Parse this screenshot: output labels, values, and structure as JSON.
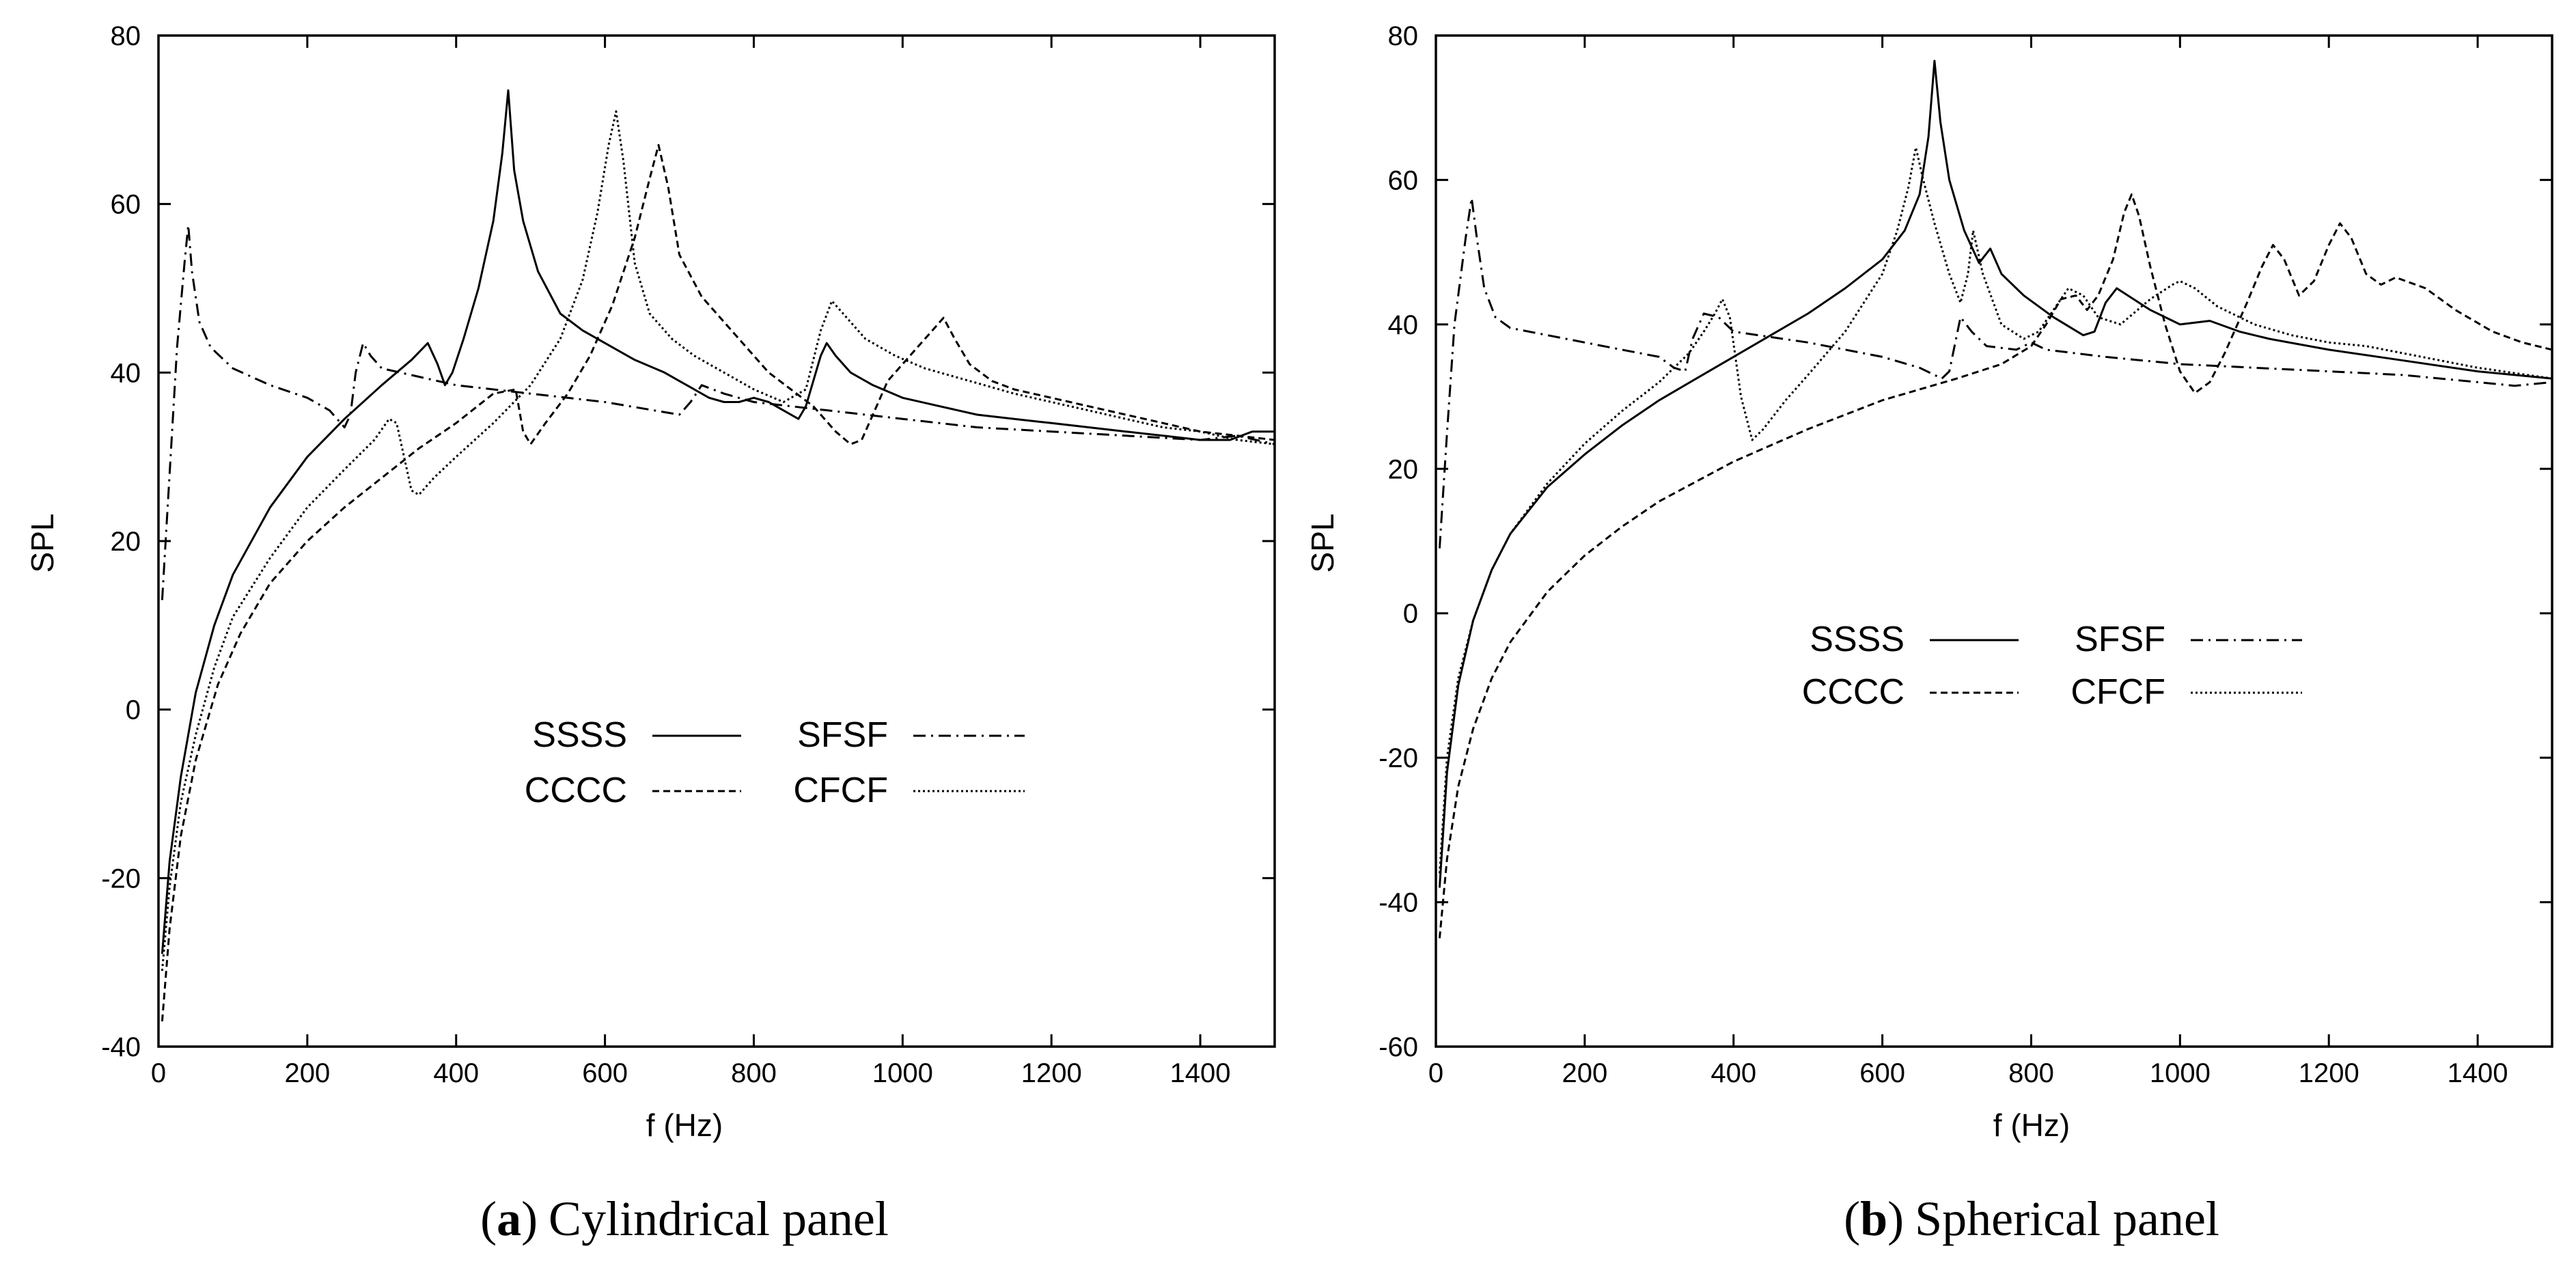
{
  "chart_data": [
    {
      "type": "line",
      "caption_letter": "a",
      "caption_text": "Cylindrical panel",
      "caption_open": "(",
      "caption_close": ")",
      "xlabel": "f (Hz)",
      "ylabel": "SPL",
      "xlim": [
        0,
        1500
      ],
      "ylim": [
        -40,
        80
      ],
      "xticks": [
        0,
        200,
        400,
        600,
        800,
        1000,
        1200,
        1400
      ],
      "yticks": [
        -40,
        -20,
        0,
        20,
        40,
        60,
        80
      ],
      "legend_position": "center",
      "series": [
        {
          "name": "SSSS",
          "dash": "solid",
          "x": [
            5,
            15,
            30,
            50,
            75,
            100,
            150,
            200,
            250,
            300,
            340,
            362,
            375,
            385,
            395,
            410,
            430,
            450,
            462,
            470,
            478,
            490,
            510,
            540,
            570,
            600,
            640,
            680,
            700,
            720,
            740,
            760,
            780,
            800,
            820,
            840,
            860,
            870,
            880,
            890,
            898,
            910,
            930,
            960,
            1000,
            1050,
            1100,
            1150,
            1200,
            1250,
            1300,
            1350,
            1400,
            1440,
            1470,
            1500
          ],
          "y": [
            -29,
            -18,
            -8,
            2,
            10,
            16,
            24,
            30,
            34.5,
            38.5,
            41.5,
            43.5,
            41,
            38.5,
            40,
            44,
            50,
            58,
            66,
            73.5,
            64,
            58,
            52,
            47,
            45,
            43.5,
            41.5,
            40,
            39,
            38,
            37,
            36.5,
            36.5,
            37,
            36.5,
            35.5,
            34.5,
            36,
            39,
            42,
            43.5,
            42,
            40,
            38.5,
            37,
            36,
            35,
            34.5,
            34,
            33.5,
            33,
            32.5,
            32,
            32,
            33,
            33
          ]
        },
        {
          "name": "SFSF",
          "dash": "dash-dot",
          "x": [
            5,
            15,
            25,
            35,
            40,
            45,
            55,
            70,
            100,
            150,
            200,
            230,
            250,
            258,
            265,
            275,
            285,
            300,
            350,
            400,
            500,
            600,
            700,
            715,
            730,
            760,
            800,
            900,
            1000,
            1100,
            1200,
            1300,
            1400,
            1450,
            1500
          ],
          "y": [
            13,
            28,
            43,
            53,
            57.5,
            52,
            46,
            43,
            40.5,
            38.5,
            37,
            35.5,
            33.5,
            35,
            40,
            43.5,
            42,
            40.5,
            39.5,
            38.5,
            37.5,
            36.5,
            35,
            36.5,
            38.5,
            37.5,
            36.5,
            35.5,
            34.5,
            33.5,
            33,
            32.5,
            32,
            32.5,
            31.5
          ]
        },
        {
          "name": "CCCC",
          "dash": "dashed",
          "x": [
            5,
            15,
            30,
            50,
            80,
            110,
            150,
            200,
            250,
            300,
            350,
            400,
            450,
            480,
            490,
            500,
            520,
            550,
            580,
            610,
            640,
            660,
            672,
            685,
            700,
            730,
            760,
            790,
            820,
            850,
            880,
            910,
            930,
            945,
            960,
            980,
            1000,
            1020,
            1040,
            1055,
            1070,
            1090,
            1120,
            1150,
            1200,
            1250,
            1300,
            1350,
            1400,
            1450,
            1500
          ],
          "y": [
            -37,
            -26,
            -15,
            -6,
            3,
            9,
            15,
            20,
            24,
            27.5,
            31,
            34,
            37.5,
            38,
            33,
            31.5,
            34,
            37.5,
            42,
            48,
            56,
            63,
            67,
            62,
            54,
            49,
            46,
            43,
            40,
            38,
            36,
            33,
            31.5,
            32,
            35,
            39,
            41,
            43,
            45,
            46.5,
            44,
            41,
            39,
            38,
            37,
            36,
            35,
            34,
            33,
            32.5,
            32
          ]
        },
        {
          "name": "CFCF",
          "dash": "dotted",
          "x": [
            5,
            15,
            30,
            50,
            75,
            100,
            150,
            200,
            250,
            290,
            310,
            320,
            330,
            340,
            350,
            370,
            400,
            450,
            500,
            540,
            570,
            590,
            605,
            615,
            625,
            640,
            660,
            690,
            720,
            760,
            800,
            840,
            870,
            890,
            905,
            920,
            950,
            990,
            1030,
            1070,
            1110,
            1150,
            1200,
            1250,
            1300,
            1350,
            1400,
            1450,
            1500
          ],
          "y": [
            -31,
            -21,
            -11,
            -3,
            5,
            11,
            18,
            24,
            28.5,
            32,
            34.5,
            34,
            30,
            26,
            25.5,
            27.5,
            30,
            34,
            38.5,
            44,
            51,
            59,
            67,
            71,
            65,
            53,
            47,
            44,
            42,
            40,
            38,
            36.5,
            38,
            45,
            48.5,
            47,
            44,
            42,
            40.5,
            39.5,
            38.5,
            37.5,
            36.5,
            35.5,
            34.5,
            33.5,
            33,
            32,
            31.5
          ]
        }
      ]
    },
    {
      "type": "line",
      "caption_letter": "b",
      "caption_text": "Spherical panel",
      "caption_open": "(",
      "caption_close": ")",
      "xlabel": "f (Hz)",
      "ylabel": "SPL",
      "xlim": [
        0,
        1500
      ],
      "ylim": [
        -60,
        80
      ],
      "xticks": [
        0,
        200,
        400,
        600,
        800,
        1000,
        1200,
        1400
      ],
      "yticks": [
        -60,
        -40,
        -20,
        0,
        20,
        40,
        60,
        80
      ],
      "legend_position": "center",
      "series": [
        {
          "name": "SSSS",
          "dash": "solid",
          "x": [
            5,
            15,
            30,
            50,
            75,
            100,
            150,
            200,
            250,
            300,
            350,
            400,
            450,
            500,
            550,
            600,
            630,
            650,
            662,
            670,
            678,
            690,
            710,
            730,
            745,
            760,
            790,
            830,
            870,
            885,
            900,
            915,
            930,
            960,
            1000,
            1040,
            1080,
            1120,
            1200,
            1300,
            1400,
            1500
          ],
          "y": [
            -38,
            -22,
            -10,
            -1,
            6,
            11,
            17.5,
            22,
            26,
            29.5,
            32.5,
            35.5,
            38.5,
            41.5,
            45,
            49,
            53,
            58,
            66,
            76.5,
            68,
            60,
            53,
            48.5,
            50.5,
            47,
            44,
            41,
            38.5,
            39,
            43,
            45,
            44,
            42,
            40,
            40.5,
            39,
            38,
            36.5,
            35,
            33.5,
            32.5
          ]
        },
        {
          "name": "SFSF",
          "dash": "dash-dot",
          "x": [
            5,
            15,
            25,
            40,
            48,
            55,
            65,
            80,
            100,
            150,
            200,
            250,
            300,
            320,
            335,
            345,
            360,
            380,
            400,
            500,
            600,
            650,
            680,
            690,
            705,
            720,
            740,
            780,
            800,
            820,
            900,
            1000,
            1100,
            1200,
            1300,
            1400,
            1450,
            1500
          ],
          "y": [
            9,
            25,
            40,
            52,
            57.5,
            52,
            45,
            41,
            39.5,
            38.5,
            37.5,
            36.5,
            35.5,
            34,
            33.5,
            38,
            41.5,
            41,
            39,
            37.5,
            35.5,
            34,
            32.5,
            33.5,
            41,
            39,
            37,
            36.5,
            37.5,
            36.5,
            35.5,
            34.5,
            34,
            33.5,
            33,
            32,
            31.5,
            32
          ]
        },
        {
          "name": "CCCC",
          "dash": "dashed",
          "x": [
            5,
            15,
            30,
            50,
            75,
            100,
            150,
            200,
            250,
            300,
            400,
            500,
            600,
            700,
            760,
            800,
            820,
            840,
            860,
            875,
            890,
            910,
            925,
            935,
            945,
            960,
            980,
            1000,
            1020,
            1040,
            1060,
            1090,
            1110,
            1125,
            1140,
            1160,
            1180,
            1200,
            1215,
            1230,
            1250,
            1270,
            1290,
            1330,
            1370,
            1420,
            1460,
            1500
          ],
          "y": [
            -45,
            -34,
            -24,
            -16,
            -9,
            -4,
            3,
            8,
            12,
            15.5,
            21,
            25.5,
            29.5,
            32.5,
            34.5,
            37,
            40,
            43.5,
            44,
            42,
            44,
            49,
            55.5,
            58,
            55,
            48,
            40,
            33.5,
            30.5,
            32,
            36,
            43,
            48,
            51,
            49,
            44,
            46,
            51,
            54,
            52,
            47,
            45.5,
            46.5,
            45,
            42,
            39,
            37.5,
            36.5
          ]
        },
        {
          "name": "CFCF",
          "dash": "dotted",
          "x": [
            5,
            15,
            30,
            50,
            75,
            100,
            150,
            200,
            250,
            300,
            340,
            360,
            375,
            385,
            395,
            410,
            425,
            440,
            470,
            500,
            550,
            600,
            620,
            635,
            645,
            655,
            670,
            690,
            705,
            715,
            722,
            735,
            760,
            790,
            810,
            830,
            850,
            870,
            890,
            920,
            960,
            990,
            1000,
            1020,
            1050,
            1100,
            1150,
            1200,
            1250,
            1300,
            1400,
            1500
          ],
          "y": [
            -36,
            -20,
            -9,
            -1,
            6,
            11,
            18,
            23.5,
            28,
            32,
            36,
            39,
            41.5,
            43.5,
            41,
            30,
            24,
            25.5,
            29.5,
            33,
            39,
            47,
            53,
            59,
            64.5,
            60,
            54,
            47,
            43,
            47,
            53,
            47,
            40,
            38,
            39,
            42,
            45,
            44,
            41,
            40,
            43.5,
            45.5,
            46,
            45,
            42.5,
            40,
            38.5,
            37.5,
            37,
            36,
            34,
            32.5
          ]
        }
      ]
    }
  ]
}
